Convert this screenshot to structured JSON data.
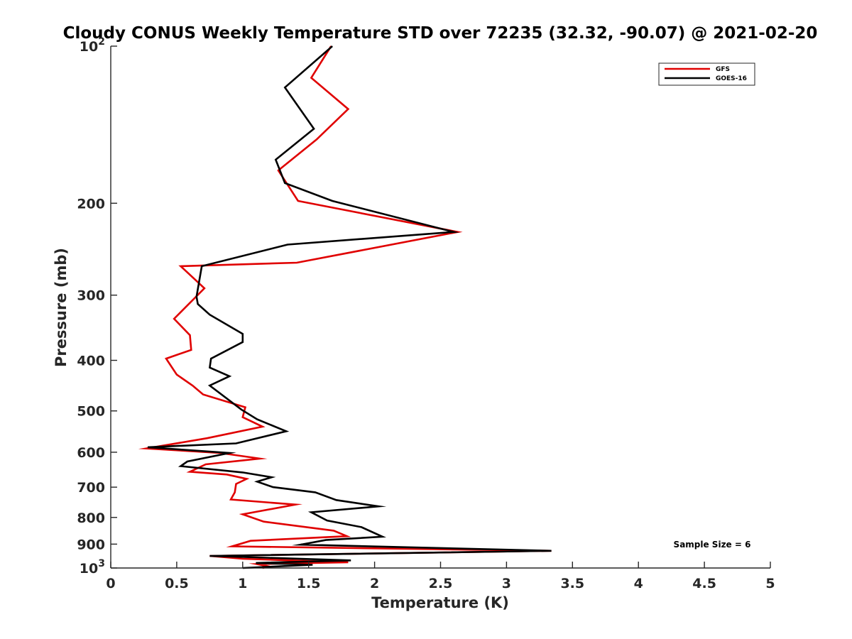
{
  "chart_data": {
    "type": "line",
    "title": "Cloudy CONUS Weekly Temperature STD over 72235 (32.32, -90.07) @ 2021-02-20",
    "xlabel": "Temperature (K)",
    "ylabel": "Pressure (mb)",
    "xlim": [
      0,
      5
    ],
    "ylim": [
      100,
      1000
    ],
    "yscale": "log",
    "y_reversed": true,
    "xticks": [
      0,
      0.5,
      1,
      1.5,
      2,
      2.5,
      3,
      3.5,
      4,
      4.5,
      5
    ],
    "xtick_labels": [
      "0",
      "0.5",
      "1",
      "1.5",
      "2",
      "2.5",
      "3",
      "3.5",
      "4",
      "4.5",
      "5"
    ],
    "yticks": [
      100,
      200,
      300,
      400,
      500,
      600,
      700,
      800,
      900,
      1000
    ],
    "ytick_labels": [
      {
        "base": "10",
        "exp": "2"
      },
      {
        "base": "200",
        "exp": ""
      },
      {
        "base": "300",
        "exp": ""
      },
      {
        "base": "400",
        "exp": ""
      },
      {
        "base": "500",
        "exp": ""
      },
      {
        "base": "600",
        "exp": ""
      },
      {
        "base": "700",
        "exp": ""
      },
      {
        "base": "800",
        "exp": ""
      },
      {
        "base": "900",
        "exp": ""
      },
      {
        "base": "10",
        "exp": "3"
      }
    ],
    "legend": {
      "position": "top-right",
      "entries": [
        "GFS",
        "GOES-16"
      ]
    },
    "annotation": "Sample Size = 6",
    "series": [
      {
        "name": "GFS",
        "color": "#e00000",
        "points": [
          [
            1.67,
            100
          ],
          [
            1.52,
            115
          ],
          [
            1.8,
            132
          ],
          [
            1.56,
            151
          ],
          [
            1.27,
            173
          ],
          [
            1.42,
            198
          ],
          [
            2.63,
            227
          ],
          [
            1.41,
            260
          ],
          [
            0.53,
            264
          ],
          [
            0.71,
            291
          ],
          [
            0.48,
            333
          ],
          [
            0.6,
            358
          ],
          [
            0.61,
            382
          ],
          [
            0.42,
            397
          ],
          [
            0.5,
            426
          ],
          [
            0.62,
            447
          ],
          [
            0.7,
            465
          ],
          [
            1.02,
            492
          ],
          [
            1.0,
            514
          ],
          [
            1.15,
            536
          ],
          [
            0.73,
            564
          ],
          [
            0.27,
            590
          ],
          [
            0.83,
            602
          ],
          [
            1.13,
            617
          ],
          [
            0.72,
            633
          ],
          [
            0.6,
            654
          ],
          [
            0.88,
            662
          ],
          [
            1.03,
            675
          ],
          [
            0.95,
            690
          ],
          [
            0.94,
            716
          ],
          [
            0.91,
            739
          ],
          [
            1.4,
            756
          ],
          [
            1.0,
            789
          ],
          [
            1.16,
            815
          ],
          [
            1.69,
            848
          ],
          [
            1.79,
            869
          ],
          [
            1.06,
            887
          ],
          [
            0.92,
            909
          ],
          [
            3.34,
            927
          ],
          [
            0.75,
            948
          ],
          [
            1.0,
            960
          ],
          [
            1.8,
            975
          ],
          [
            1.11,
            983
          ],
          [
            1.2,
            993
          ],
          [
            1.15,
            1000
          ]
        ]
      },
      {
        "name": "GOES-16",
        "color": "#000000",
        "points": [
          [
            1.68,
            100
          ],
          [
            1.32,
            120
          ],
          [
            1.54,
            144
          ],
          [
            1.25,
            165
          ],
          [
            1.32,
            183
          ],
          [
            1.68,
            198
          ],
          [
            2.6,
            227
          ],
          [
            1.34,
            240
          ],
          [
            0.69,
            264
          ],
          [
            0.65,
            302
          ],
          [
            0.66,
            312
          ],
          [
            0.75,
            327
          ],
          [
            1.0,
            356
          ],
          [
            1.0,
            369
          ],
          [
            0.76,
            397
          ],
          [
            0.75,
            413
          ],
          [
            0.9,
            429
          ],
          [
            0.75,
            447
          ],
          [
            0.99,
            497
          ],
          [
            1.11,
            519
          ],
          [
            1.33,
            547
          ],
          [
            0.95,
            577
          ],
          [
            0.28,
            587
          ],
          [
            0.9,
            602
          ],
          [
            0.58,
            625
          ],
          [
            0.53,
            638
          ],
          [
            1.0,
            656
          ],
          [
            1.22,
            670
          ],
          [
            1.11,
            683
          ],
          [
            1.23,
            700
          ],
          [
            1.55,
            716
          ],
          [
            1.71,
            741
          ],
          [
            2.03,
            762
          ],
          [
            1.52,
            782
          ],
          [
            1.64,
            811
          ],
          [
            1.9,
            835
          ],
          [
            2.06,
            871
          ],
          [
            1.63,
            884
          ],
          [
            1.44,
            902
          ],
          [
            3.34,
            927
          ],
          [
            0.75,
            948
          ],
          [
            1.82,
            967
          ],
          [
            1.1,
            978
          ],
          [
            1.53,
            986
          ],
          [
            1.0,
            1000
          ]
        ]
      }
    ]
  }
}
